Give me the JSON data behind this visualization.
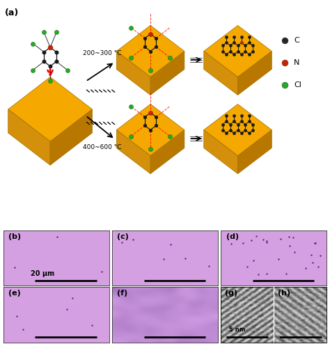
{
  "figure_title": "(a)",
  "panel_labels": [
    "(b)",
    "(c)",
    "(d)",
    "(e)",
    "(f)",
    "(g)",
    "(h)"
  ],
  "legend_items": [
    {
      "label": "C",
      "color": "#252525"
    },
    {
      "label": "N",
      "color": "#cc2200"
    },
    {
      "label": "Cl",
      "color": "#22aa22"
    }
  ],
  "temp_labels": [
    "200~300 °C",
    "400~600 °C"
  ],
  "scale_bar_label_b": "20 μm",
  "scale_bar_label_gh": "5 nm",
  "purple_light": "#d4a0e0",
  "purple_mid": "#cc95dd",
  "purple_f": "#c090d8",
  "gold_top": "#f5a800",
  "gold_front": "#d4900a",
  "gold_right": "#b87800",
  "background_color": "#ffffff",
  "fig_width": 4.74,
  "fig_height": 4.94,
  "dpi": 100
}
